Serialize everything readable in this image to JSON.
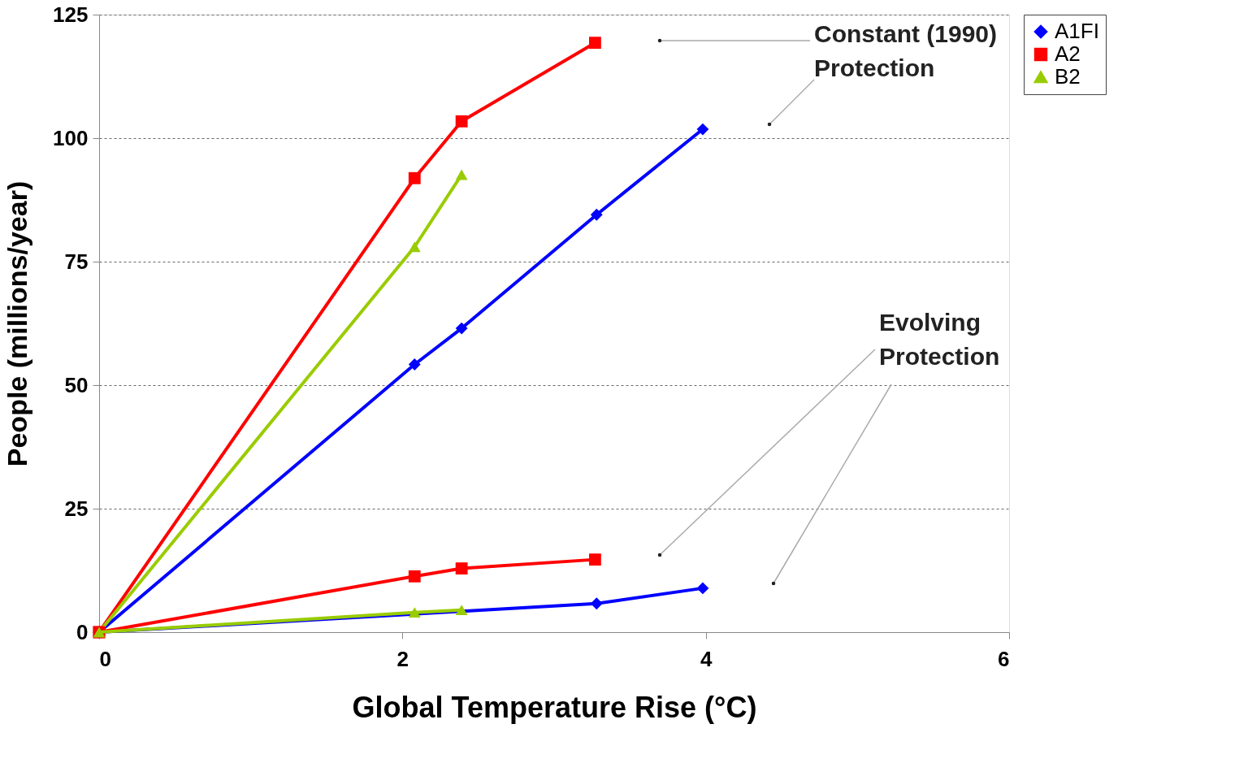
{
  "chart_data": {
    "type": "line",
    "xlabel": "Global Temperature Rise (°C)",
    "ylabel": "People (millions/year)",
    "xlim": [
      0,
      6
    ],
    "xticks": [
      0,
      2,
      4,
      6
    ],
    "ylim": [
      0,
      125
    ],
    "yticks": [
      0,
      25,
      50,
      75,
      100,
      125
    ],
    "grid": "y",
    "legend": "right",
    "line_style": "solid",
    "series": [
      {
        "name": "A1FI",
        "color": "#0000ff",
        "marker": "diamond",
        "x": [
          0,
          2.08,
          2.39,
          3.28,
          3.98
        ],
        "values": [
          0,
          54.2,
          61.5,
          84.5,
          101.8
        ]
      },
      {
        "name": "A2",
        "color": "#ff0000",
        "marker": "square",
        "x": [
          0,
          2.08,
          2.39,
          3.27
        ],
        "values": [
          0,
          91.9,
          103.4,
          119.3
        ]
      },
      {
        "name": "B2",
        "color": "#99cc00",
        "marker": "triangle",
        "x": [
          0,
          2.08,
          2.39
        ],
        "values": [
          0,
          78,
          92.6
        ]
      },
      {
        "color": "#0000ff",
        "marker": "diamond",
        "x": [
          0,
          3.28,
          3.98
        ],
        "values": [
          0,
          5.8,
          8.9
        ]
      },
      {
        "color": "#ff0000",
        "marker": "square",
        "x": [
          0,
          2.08,
          2.39,
          3.27
        ],
        "values": [
          0,
          11.3,
          12.9,
          14.7
        ]
      },
      {
        "color": "#99cc00",
        "marker": "triangle",
        "x": [
          0,
          2.08,
          2.39
        ],
        "values": [
          0,
          4.0,
          4.5
        ]
      }
    ],
    "annotations": [
      "Constant (1990)\nProtection",
      "Evolving\nProtection"
    ]
  }
}
